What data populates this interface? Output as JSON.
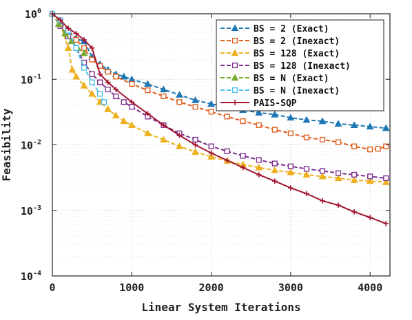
{
  "chart_data": {
    "type": "line",
    "title": "",
    "xlabel": "Linear System Iterations",
    "ylabel": "Feasibility",
    "xlim": [
      0,
      4250
    ],
    "ylim": [
      0.0001,
      1
    ],
    "yscale": "log",
    "grid": true,
    "legend_position": "top-right",
    "x_ticks": [
      0,
      1000,
      2000,
      3000,
      4000
    ],
    "x_tick_labels": [
      "0",
      "1000",
      "2000",
      "3000",
      "4000"
    ],
    "y_ticks": [
      0.0001,
      0.001,
      0.01,
      0.1,
      1
    ],
    "y_tick_labels": [
      {
        "base": "10",
        "exp": "-4"
      },
      {
        "base": "10",
        "exp": "-3"
      },
      {
        "base": "10",
        "exp": "-2"
      },
      {
        "base": "10",
        "exp": "-1"
      },
      {
        "base": "10",
        "exp": "0"
      }
    ],
    "series": [
      {
        "name": "BS = 2 (Exact)",
        "color": "#1f77b4",
        "dash": "6,3",
        "marker": "triangle",
        "filled": true,
        "x": [
          0,
          100,
          200,
          300,
          400,
          500,
          600,
          700,
          800,
          900,
          1000,
          1200,
          1400,
          1600,
          1800,
          2000,
          2200,
          2400,
          2600,
          2800,
          3000,
          3200,
          3400,
          3600,
          3800,
          4000,
          4200
        ],
        "y": [
          1.0,
          0.75,
          0.55,
          0.42,
          0.38,
          0.22,
          0.17,
          0.14,
          0.12,
          0.11,
          0.1,
          0.085,
          0.07,
          0.058,
          0.048,
          0.042,
          0.038,
          0.034,
          0.031,
          0.029,
          0.026,
          0.024,
          0.023,
          0.021,
          0.02,
          0.019,
          0.018
        ]
      },
      {
        "name": "BS = 2 (Inexact)",
        "color": "#e06020",
        "dash": "6,3",
        "marker": "square",
        "filled": false,
        "x": [
          0,
          100,
          200,
          300,
          400,
          500,
          600,
          700,
          800,
          1000,
          1200,
          1400,
          1600,
          1800,
          2000,
          2200,
          2400,
          2600,
          2800,
          3000,
          3200,
          3400,
          3600,
          3800,
          4000,
          4100,
          4200
        ],
        "y": [
          1.0,
          0.75,
          0.55,
          0.4,
          0.3,
          0.2,
          0.16,
          0.13,
          0.11,
          0.085,
          0.068,
          0.055,
          0.045,
          0.038,
          0.032,
          0.027,
          0.023,
          0.02,
          0.017,
          0.015,
          0.013,
          0.012,
          0.011,
          0.0095,
          0.0085,
          0.0087,
          0.0095
        ]
      },
      {
        "name": "BS = 128 (Exact)",
        "color": "#edb120",
        "dash": "6,3",
        "marker": "triangle",
        "filled": true,
        "x": [
          0,
          100,
          200,
          250,
          300,
          400,
          500,
          600,
          700,
          800,
          900,
          1000,
          1200,
          1400,
          1600,
          1800,
          2000,
          2200,
          2400,
          2600,
          2800,
          3000,
          3200,
          3400,
          3600,
          3800,
          4000,
          4200
        ],
        "y": [
          1.0,
          0.7,
          0.3,
          0.14,
          0.11,
          0.08,
          0.06,
          0.045,
          0.035,
          0.028,
          0.023,
          0.02,
          0.015,
          0.012,
          0.0095,
          0.0078,
          0.0066,
          0.0057,
          0.005,
          0.0045,
          0.0041,
          0.0038,
          0.0035,
          0.0033,
          0.0031,
          0.0029,
          0.0028,
          0.0027
        ]
      },
      {
        "name": "BS = 128 (Inexact)",
        "color": "#7e2f8e",
        "dash": "6,3",
        "marker": "square",
        "filled": false,
        "x": [
          0,
          100,
          200,
          300,
          400,
          500,
          600,
          700,
          800,
          900,
          1000,
          1200,
          1400,
          1600,
          1800,
          2000,
          2200,
          2400,
          2600,
          2800,
          3000,
          3200,
          3400,
          3600,
          3800,
          4000,
          4200
        ],
        "y": [
          1.0,
          0.65,
          0.45,
          0.3,
          0.18,
          0.12,
          0.09,
          0.07,
          0.055,
          0.045,
          0.038,
          0.027,
          0.02,
          0.015,
          0.012,
          0.0095,
          0.008,
          0.0068,
          0.0059,
          0.0052,
          0.0047,
          0.0043,
          0.004,
          0.0037,
          0.0035,
          0.0033,
          0.0031
        ]
      },
      {
        "name": "BS = N (Exact)",
        "color": "#77ac30",
        "dash": "6,3",
        "marker": "triangle",
        "filled": true,
        "x": [
          0,
          80,
          160,
          240,
          320,
          400
        ],
        "y": [
          1.0,
          0.7,
          0.5,
          0.38,
          0.3,
          0.25
        ]
      },
      {
        "name": "BS = N (Inexact)",
        "color": "#4dbeee",
        "dash": "6,3",
        "marker": "square",
        "filled": false,
        "x": [
          0,
          100,
          200,
          300,
          400,
          500,
          600,
          650
        ],
        "y": [
          1.0,
          0.8,
          0.55,
          0.3,
          0.15,
          0.09,
          0.06,
          0.045
        ]
      },
      {
        "name": "PAIS-SQP",
        "color": "#a2142f",
        "dash": "",
        "marker": "plus",
        "filled": false,
        "x": [
          0,
          100,
          200,
          300,
          400,
          500,
          600,
          700,
          800,
          1000,
          1200,
          1400,
          1600,
          1800,
          2000,
          2200,
          2400,
          2600,
          2800,
          3000,
          3200,
          3400,
          3600,
          3800,
          4000,
          4200
        ],
        "y": [
          1.0,
          0.8,
          0.6,
          0.5,
          0.4,
          0.3,
          0.12,
          0.09,
          0.07,
          0.045,
          0.03,
          0.02,
          0.014,
          0.01,
          0.0075,
          0.0058,
          0.0045,
          0.0035,
          0.0028,
          0.0022,
          0.0018,
          0.0014,
          0.0012,
          0.00095,
          0.00078,
          0.00063
        ]
      }
    ]
  }
}
